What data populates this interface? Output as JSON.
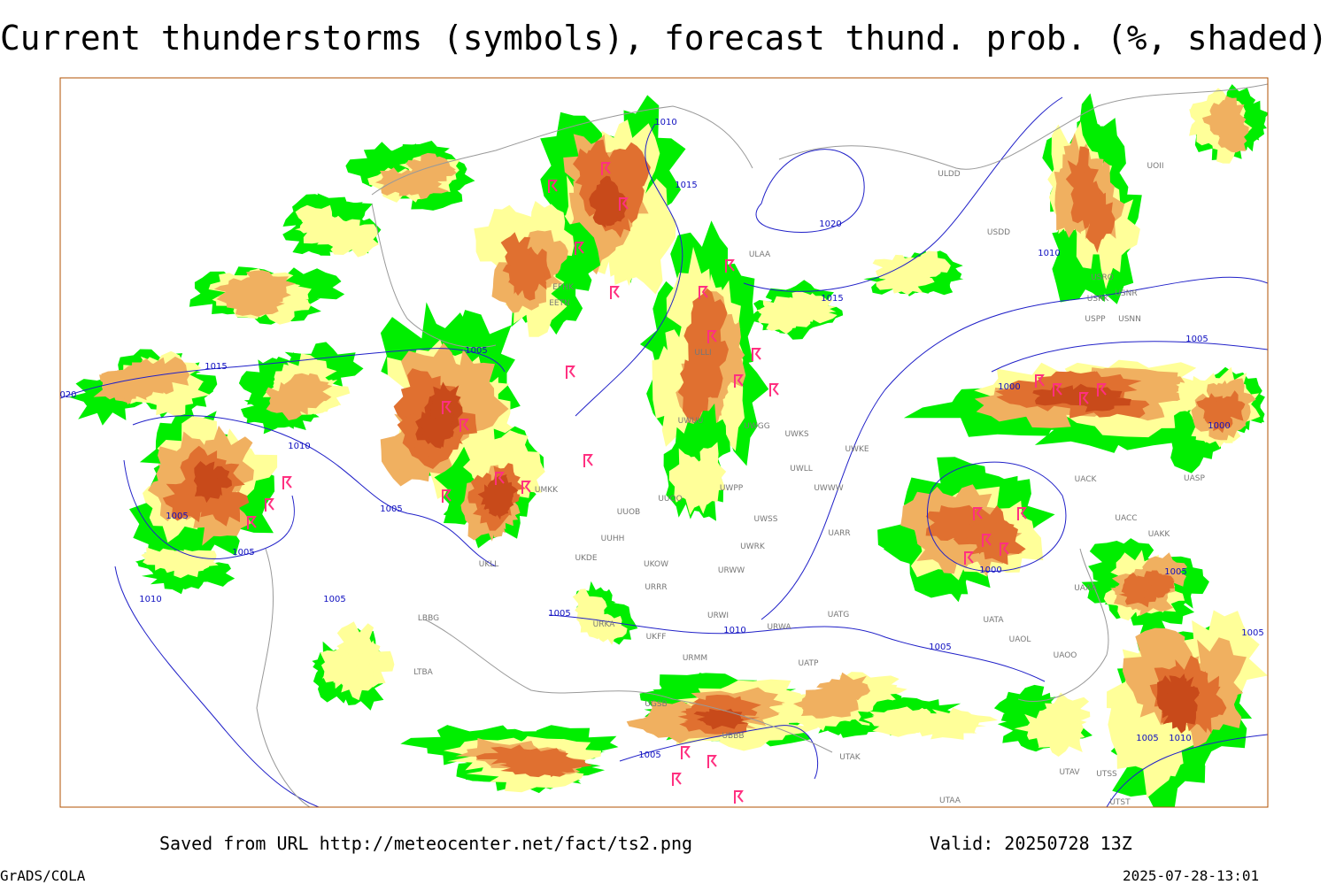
{
  "header": {
    "title": "Current thunderstorms (symbols), forecast thund. prob. (%, shaded)"
  },
  "isobar_labels": [
    "1010",
    "1015",
    "1020",
    "1015",
    "1005",
    "1015",
    "020",
    "1010",
    "1005",
    "1005",
    "1005",
    "1010",
    "1005",
    "1005",
    "1010",
    "1005",
    "1000",
    "1000",
    "1010",
    "1005",
    "1000",
    "1005",
    "1005",
    "1005",
    "1010",
    "1005"
  ],
  "station_labels": [
    "ULDD",
    "USDD",
    "ULAA",
    "UOII",
    "USRO",
    "USNR",
    "USRK",
    "USPP",
    "USNN",
    "UWKS",
    "UWKE",
    "UWPP",
    "UWWW",
    "UWSS",
    "UARR",
    "UWRK",
    "URWW",
    "UUOB",
    "UUOO",
    "UUHH",
    "UKDE",
    "UKOW",
    "URRR",
    "URWI",
    "URWA",
    "UATG",
    "UATA",
    "UAOL",
    "UAOO",
    "UATP",
    "UACK",
    "UASP",
    "UACC",
    "UAKK",
    "UAAA",
    "URMM",
    "UKFF",
    "URKA",
    "LBBG",
    "LTBA",
    "UGSB",
    "UBBB",
    "UTAK",
    "UTAV",
    "UTSS",
    "UTAA",
    "UTST",
    "ULLI",
    "EFHK",
    "EETN",
    "UMKK",
    "UKLL",
    "UWGG",
    "UWLL",
    "UWUU"
  ],
  "footer": {
    "source": "Saved from URL http://meteocenter.net/fact/ts2.png",
    "valid": "Valid: 20250728 13Z",
    "software": "GrADS/COLA",
    "timestamp": "2025-07-28-13:01"
  }
}
